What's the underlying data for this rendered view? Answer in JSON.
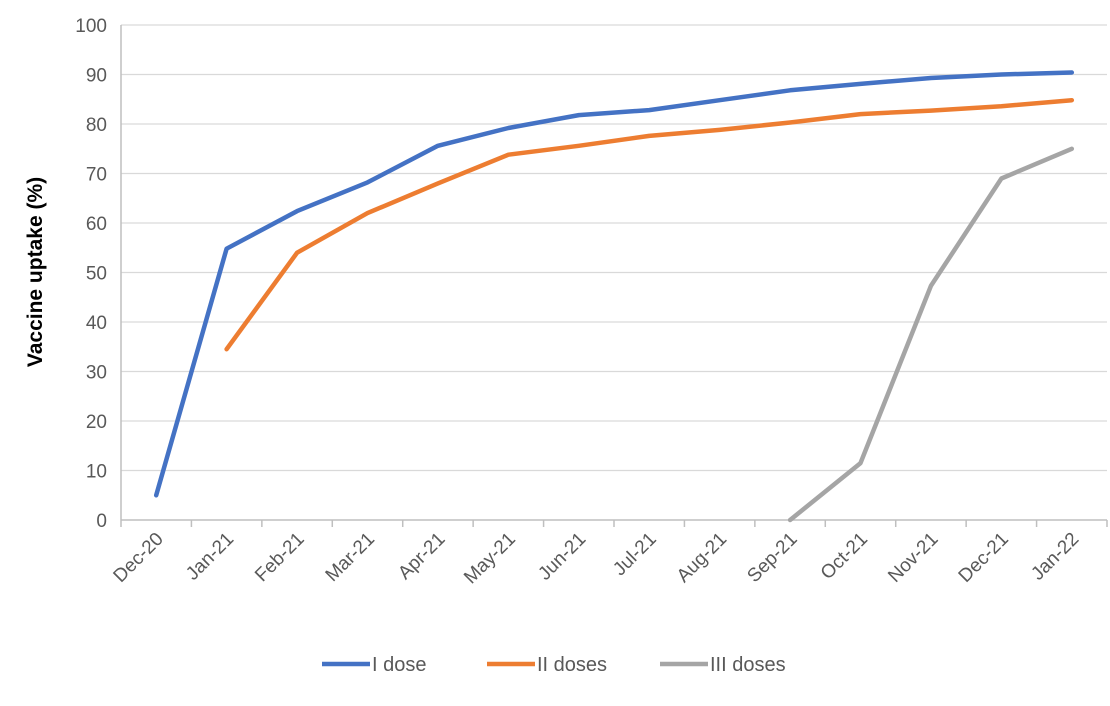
{
  "chart_data": {
    "type": "line",
    "title": "",
    "xlabel": "",
    "ylabel": "Vaccine uptake (%)",
    "ylim": [
      0,
      100
    ],
    "yticks": [
      0,
      10,
      20,
      30,
      40,
      50,
      60,
      70,
      80,
      90,
      100
    ],
    "categories": [
      "Dec-20",
      "Jan-21",
      "Feb-21",
      "Mar-21",
      "Apr-21",
      "May-21",
      "Jun-21",
      "Jul-21",
      "Aug-21",
      "Sep-21",
      "Oct-21",
      "Nov-21",
      "Dec-21",
      "Jan-22"
    ],
    "grid": true,
    "legend_position": "bottom",
    "series": [
      {
        "name": "I dose",
        "color": "#4472C4",
        "values": [
          5,
          54.8,
          62.4,
          68.2,
          75.6,
          79.2,
          81.8,
          82.8,
          84.8,
          86.8,
          88.1,
          89.3,
          90.0,
          90.4
        ]
      },
      {
        "name": "II doses",
        "color": "#ED7D31",
        "values": [
          null,
          34.5,
          54.0,
          62.0,
          68.0,
          73.8,
          75.6,
          77.6,
          78.8,
          80.3,
          82.0,
          82.7,
          83.6,
          84.8
        ]
      },
      {
        "name": "III doses",
        "color": "#A5A5A5",
        "values": [
          null,
          null,
          null,
          null,
          null,
          null,
          null,
          null,
          null,
          0,
          11.5,
          47.3,
          69.0,
          75.0
        ]
      }
    ]
  }
}
